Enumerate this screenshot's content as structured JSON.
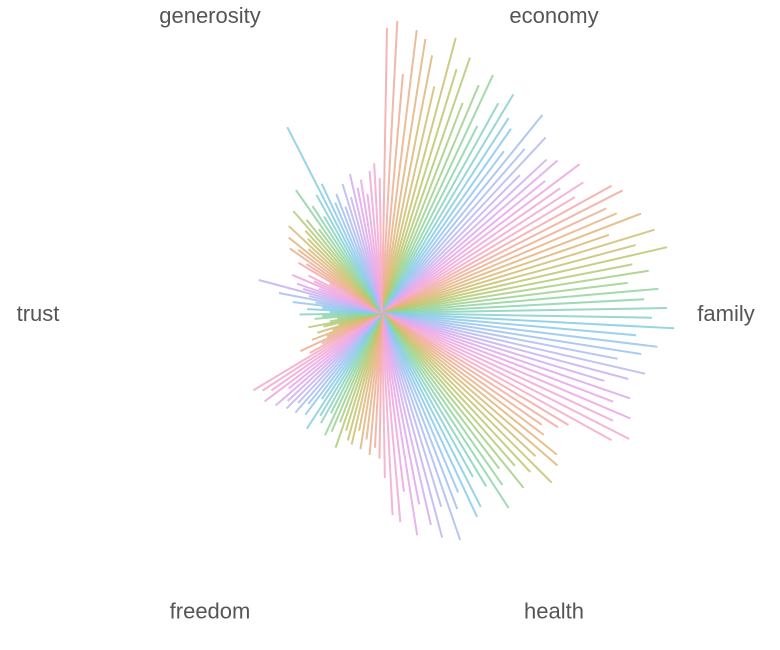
{
  "chart_data": {
    "type": "radial",
    "rlim": [
      0,
      2
    ],
    "colors": [
      "#f4a8a8",
      "#e2b57a",
      "#b9c86c",
      "#8ed6a2",
      "#84cbea",
      "#b4b9f2",
      "#e8a4ea",
      "#f5a9c6"
    ],
    "series": [
      {
        "name": "economy",
        "values": [
          1.9,
          1.95,
          1.6,
          1.9,
          1.85,
          1.75,
          1.55,
          1.9,
          1.7,
          1.8,
          1.5,
          1.65,
          1.75,
          1.4,
          1.6,
          1.7,
          1.55,
          1.5,
          1.35,
          1.7,
          1.45,
          1.6,
          1.3,
          1.5,
          1.55,
          1.4,
          1.65,
          1.45,
          1.6,
          1.5
        ]
      },
      {
        "name": "family",
        "values": [
          1.75,
          1.8,
          1.65,
          1.7,
          1.85,
          1.6,
          1.9,
          1.75,
          1.95,
          1.7,
          1.8,
          1.65,
          1.85,
          1.75,
          1.9,
          1.8,
          1.95,
          1.7,
          1.85,
          1.75,
          1.6,
          1.8,
          1.7,
          1.55,
          1.75,
          1.65,
          1.8,
          1.7,
          1.85,
          1.75
        ]
      },
      {
        "name": "health",
        "values": [
          1.45,
          1.4,
          1.3,
          1.35,
          1.5,
          1.55,
          1.4,
          1.6,
          1.45,
          1.35,
          1.5,
          1.3,
          1.4,
          1.55,
          1.35,
          1.25,
          1.45,
          1.5,
          1.3,
          1.4,
          1.6,
          1.35,
          1.55,
          1.45,
          1.3,
          1.5,
          1.2,
          1.4,
          1.35,
          1.1
        ]
      },
      {
        "name": "freedom",
        "values": [
          0.97,
          0.9,
          0.95,
          0.85,
          0.92,
          0.8,
          0.9,
          0.88,
          0.82,
          0.95,
          0.78,
          0.86,
          0.9,
          0.75,
          0.84,
          0.8,
          0.92,
          0.7,
          0.85,
          0.78,
          0.88,
          0.82,
          0.9,
          0.86,
          0.94,
          0.8,
          0.98,
          0.9,
          0.95,
          1.0
        ]
      },
      {
        "name": "trust",
        "values": [
          0.55,
          0.45,
          0.6,
          0.4,
          0.5,
          0.35,
          0.45,
          0.3,
          0.4,
          0.5,
          0.35,
          0.3,
          0.45,
          0.4,
          0.55,
          0.35,
          0.5,
          0.4,
          0.6,
          0.45,
          0.7,
          0.5,
          0.85,
          0.55,
          0.6,
          0.45,
          0.65,
          0.5,
          0.55,
          0.4
        ]
      },
      {
        "name": "generosity",
        "values": [
          0.65,
          0.6,
          0.75,
          0.7,
          0.8,
          0.65,
          0.85,
          0.7,
          0.75,
          0.9,
          0.8,
          0.7,
          1.0,
          0.85,
          0.75,
          0.9,
          1.39,
          0.95,
          0.8,
          0.85,
          0.75,
          0.9,
          0.8,
          0.95,
          0.85,
          0.9,
          0.8,
          0.95,
          1.0,
          0.9
        ]
      }
    ]
  }
}
